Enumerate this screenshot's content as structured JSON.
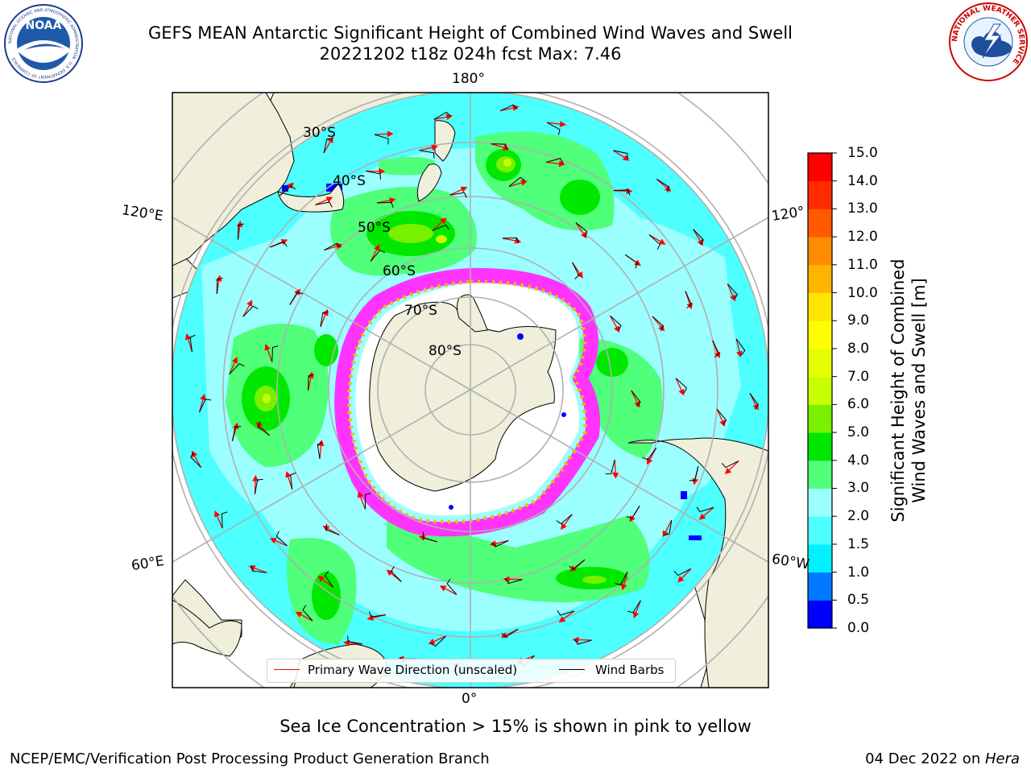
{
  "title": {
    "line1": "GEFS MEAN Antarctic Significant Height of Combined Wind Waves and Swell",
    "line2": "20221202 t18z 024h fcst   Max: 7.46"
  },
  "logos": {
    "left": {
      "name": "noaa-logo",
      "text": "NOAA",
      "ring_text": "NATIONAL OCEANIC AND ATMOSPHERIC ADMINISTRATION · U.S. DEPARTMENT OF COMMERCE"
    },
    "right": {
      "name": "nws-logo",
      "ring_text": "NATIONAL WEATHER SERVICE"
    }
  },
  "map": {
    "projection": "south-polar-stereographic",
    "longitude_labels": {
      "top": "180°",
      "left_upper": "120°E",
      "right_upper": "120°",
      "left_lower": "60°E",
      "right_lower": "60°W",
      "bottom": "0°"
    },
    "latitude_labels": [
      "30°S",
      "40°S",
      "50°S",
      "60°S",
      "70°S",
      "80°S"
    ],
    "colors": {
      "land": "#efefdc",
      "coast": "#000000",
      "grid": "#b0b0b0",
      "sea_ice": "#ff33ff",
      "ice_shelf": "#ffffff"
    }
  },
  "colorbar": {
    "label_line1": "Significant Height of Combined",
    "label_line2": "Wind Waves and Swell [m]",
    "ticks": [
      "0.0",
      "0.5",
      "1.0",
      "1.5",
      "2.0",
      "3.0",
      "4.0",
      "5.0",
      "6.0",
      "7.0",
      "8.0",
      "9.0",
      "10.0",
      "11.0",
      "12.0",
      "13.0",
      "14.0",
      "15.0"
    ],
    "colors": [
      "#0000ff",
      "#0078ff",
      "#00f0ff",
      "#4dffff",
      "#9bffff",
      "#50ff7a",
      "#00e800",
      "#78f000",
      "#c8ff00",
      "#e6ff00",
      "#ffff00",
      "#ffe600",
      "#ffb400",
      "#ff8c00",
      "#ff5a00",
      "#ff2c00",
      "#ff0000"
    ]
  },
  "legend": {
    "primary_wave": {
      "label": "Primary Wave Direction (unscaled)",
      "color": "#ff0000"
    },
    "wind_barbs": {
      "label": "Wind Barbs",
      "color": "#000000"
    }
  },
  "note": "Sea Ice Concentration > 15% is shown in pink to yellow",
  "footer": {
    "left": "NCEP/EMC/Verification Post Processing Product Generation Branch",
    "right_date": "04 Dec 2022 on ",
    "right_system": "Hera"
  }
}
